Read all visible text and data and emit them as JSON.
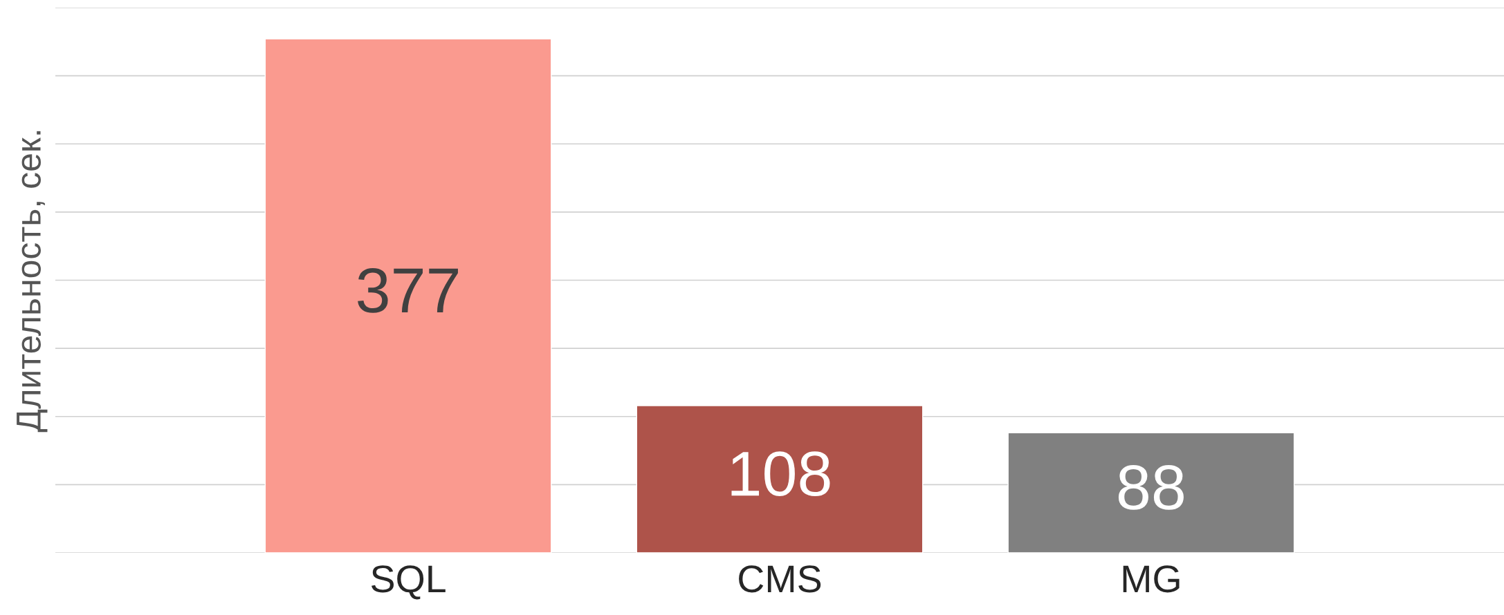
{
  "chart_data": {
    "type": "bar",
    "ylabel": "Длительность, сек.",
    "categories": [
      "SQL",
      "CMS",
      "MG"
    ],
    "values": [
      377,
      108,
      88
    ],
    "colors": [
      "#fa9a8f",
      "#ae534a",
      "#808080"
    ],
    "ylim": [
      0,
      400
    ],
    "yticks": [
      {
        "value": 0,
        "label": null
      },
      {
        "value": 50,
        "label": null
      },
      {
        "value": 100,
        "label": null
      },
      {
        "value": 150,
        "label": null
      },
      {
        "value": 200,
        "label": null
      },
      {
        "value": 250,
        "label": null
      },
      {
        "value": 300,
        "label": null
      },
      {
        "value": 350,
        "label": null
      },
      {
        "value": 400,
        "label": null
      }
    ],
    "grid": "y",
    "data_labels": true,
    "tick_labels": "x",
    "legend": false
  }
}
